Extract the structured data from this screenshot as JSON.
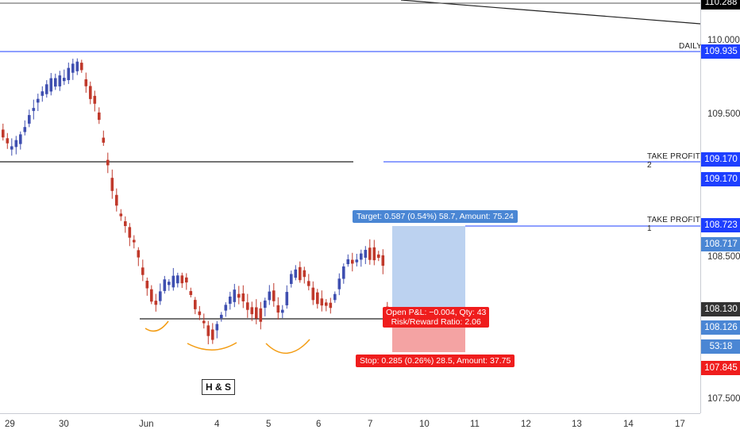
{
  "price_axis": {
    "ticks": [
      "110.000",
      "109.500",
      "108.500",
      "107.500"
    ],
    "tags": [
      {
        "value": "110.288",
        "color": "#000000",
        "name": "top-price-tag"
      },
      {
        "value": "109.935",
        "color": "#1e3fff",
        "name": "daily-price-tag"
      },
      {
        "value": "109.170",
        "color": "#1e3fff",
        "name": "tp2-price-tag"
      },
      {
        "value": "109.170",
        "color": "#1e3fff",
        "name": "tp2-price-tag-2"
      },
      {
        "value": "108.723",
        "color": "#1e3fff",
        "name": "tp1-price-tag"
      },
      {
        "value": "108.717",
        "color": "#4a86d4",
        "name": "target-price-tag"
      },
      {
        "value": "108.130",
        "color": "#333333",
        "name": "crosshair-price-tag"
      },
      {
        "value": "108.126",
        "color": "#4a86d4",
        "name": "entry-price-tag"
      },
      {
        "value": "53:18",
        "color": "#4a86d4",
        "name": "countdown-tag"
      },
      {
        "value": "107.845",
        "color": "#ef1d1d",
        "name": "stop-price-tag"
      }
    ]
  },
  "time_axis": {
    "labels": [
      "29",
      "30",
      "Jun",
      "4",
      "5",
      "6",
      "7",
      "10",
      "11",
      "12",
      "13",
      "14",
      "17"
    ]
  },
  "lines": {
    "daily_label": "DAILY",
    "tp2_label": "TAKE PROFIT 2",
    "tp1_label": "TAKE PROFIT 1"
  },
  "position": {
    "target_text": "Target: 0.587 (0.54%) 58.7, Amount: 75.24",
    "pnl_line1": "Open P&L: −0.004, Qty: 43",
    "pnl_line2": "Risk/Reward Ratio: 2.06",
    "stop_text": "Stop: 0.285 (0.26%) 28.5, Amount: 37.75",
    "target_color": "#4a86d4",
    "stop_color": "#ef1d1d"
  },
  "pattern_label": "H & S",
  "colors": {
    "bull": "#3f4fb0",
    "bear": "#c0392b",
    "pattern_curve": "#f39c12"
  }
}
